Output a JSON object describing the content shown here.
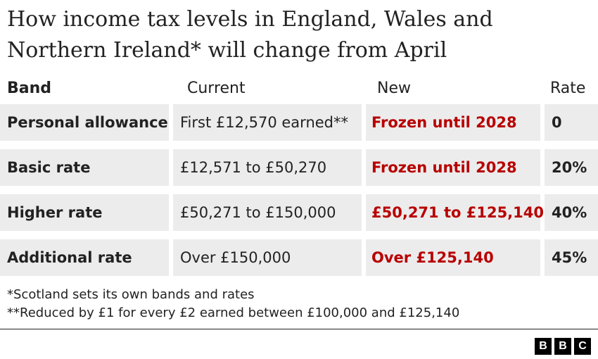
{
  "title": "How income tax levels in England, Wales and Northern Ireland* will change from April",
  "headers": {
    "band": "Band",
    "current": "Current",
    "new": "New",
    "rate": "Rate"
  },
  "rows": [
    {
      "band": "Personal allowance",
      "current": "First £12,570 earned**",
      "new": "Frozen until 2028",
      "rate": "0"
    },
    {
      "band": "Basic rate",
      "current": "£12,571 to £50,270",
      "new": "Frozen until 2028",
      "rate": "20%"
    },
    {
      "band": "Higher rate",
      "current": "£50,271 to £150,000",
      "new": "£50,271 to £125,140",
      "rate": "40%"
    },
    {
      "band": "Additional rate",
      "current": "Over £150,000",
      "new": "Over £125,140",
      "rate": "45%"
    }
  ],
  "footnotes": [
    "*Scotland sets its own bands and rates",
    "**Reduced by £1 for every £2 earned between £100,000 and £125,140"
  ],
  "logo": {
    "letters": [
      "B",
      "B",
      "C"
    ],
    "brand": "BBC"
  },
  "colors": {
    "new_value": "#b80000",
    "cell_bg": "#ececec",
    "text": "#222222"
  }
}
